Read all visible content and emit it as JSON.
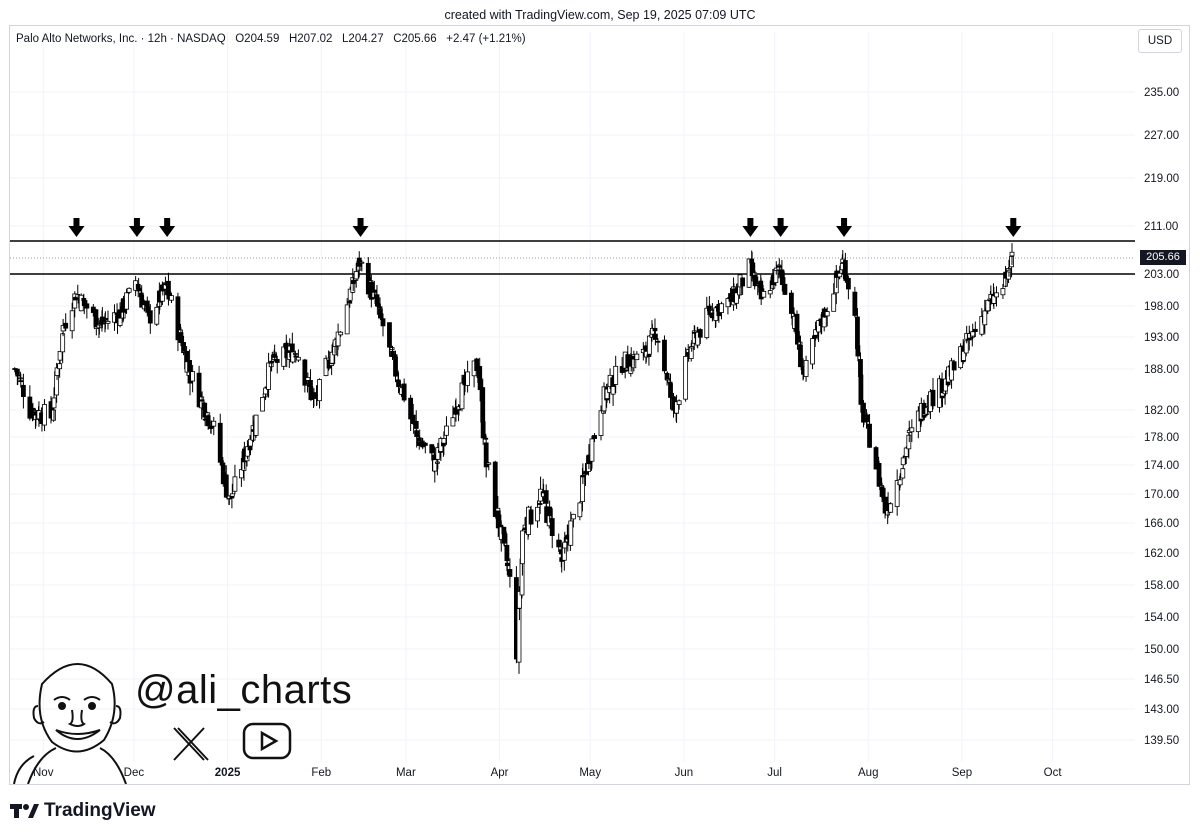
{
  "header": {
    "credit": "created with TradingView.com, Sep 19, 2025 07:09 UTC"
  },
  "legend": {
    "symbol": "Palo Alto Networks, Inc. · 12h · NASDAQ",
    "open": "O204.59",
    "high": "H207.02",
    "low": "L204.27",
    "close": "C205.66",
    "change": "+2.47 (+1.21%)"
  },
  "currency": "USD",
  "last_price": "205.66",
  "watermark": {
    "handle": "@ali_charts"
  },
  "brand": {
    "name": "TradingView"
  },
  "colors": {
    "up": "#ffffff",
    "down": "#000000",
    "wick": "#000000",
    "grid": "#f0f3fa"
  },
  "chart_data": {
    "type": "candlestick",
    "title": "Palo Alto Networks, Inc. · 12h · NASDAQ",
    "y_ticks": [
      235.0,
      227.0,
      219.0,
      211.0,
      203.0,
      198.0,
      193.0,
      188.0,
      182.0,
      178.0,
      174.0,
      170.0,
      166.0,
      162.0,
      158.0,
      154.0,
      150.0,
      146.5,
      143.0,
      139.5
    ],
    "x_ticks": [
      "Nov",
      "Dec",
      "2025",
      "Feb",
      "Mar",
      "Apr",
      "May",
      "Jun",
      "Jul",
      "Aug",
      "Sep",
      "Oct"
    ],
    "resistance_zone": [
      203.0,
      208.5
    ],
    "arrow_marker_dates": [
      "2024-11-12",
      "2024-12-02",
      "2024-12-12",
      "2025-02-14",
      "2025-06-23",
      "2025-07-03",
      "2025-07-24",
      "2025-09-18"
    ],
    "series_keypoints": [
      {
        "date": "2024-10-23",
        "close": 188
      },
      {
        "date": "2024-10-28",
        "close": 182
      },
      {
        "date": "2024-11-04",
        "close": 181
      },
      {
        "date": "2024-11-08",
        "close": 195
      },
      {
        "date": "2024-11-12",
        "close": 200
      },
      {
        "date": "2024-11-20",
        "close": 195
      },
      {
        "date": "2024-11-27",
        "close": 197
      },
      {
        "date": "2024-12-02",
        "close": 202
      },
      {
        "date": "2024-12-06",
        "close": 196
      },
      {
        "date": "2024-12-12",
        "close": 201
      },
      {
        "date": "2024-12-20",
        "close": 187
      },
      {
        "date": "2024-12-27",
        "close": 180
      },
      {
        "date": "2025-01-02",
        "close": 169
      },
      {
        "date": "2025-01-06",
        "close": 174
      },
      {
        "date": "2025-01-10",
        "close": 180
      },
      {
        "date": "2025-01-16",
        "close": 189
      },
      {
        "date": "2025-01-24",
        "close": 191
      },
      {
        "date": "2025-01-30",
        "close": 183
      },
      {
        "date": "2025-02-06",
        "close": 192
      },
      {
        "date": "2025-02-14",
        "close": 205
      },
      {
        "date": "2025-02-19",
        "close": 199
      },
      {
        "date": "2025-02-25",
        "close": 189
      },
      {
        "date": "2025-03-05",
        "close": 178
      },
      {
        "date": "2025-03-11",
        "close": 174
      },
      {
        "date": "2025-03-18",
        "close": 183
      },
      {
        "date": "2025-03-25",
        "close": 189
      },
      {
        "date": "2025-03-28",
        "close": 174
      },
      {
        "date": "2025-04-04",
        "close": 160
      },
      {
        "date": "2025-04-07",
        "close": 150
      },
      {
        "date": "2025-04-09",
        "close": 165
      },
      {
        "date": "2025-04-15",
        "close": 170
      },
      {
        "date": "2025-04-22",
        "close": 161
      },
      {
        "date": "2025-04-28",
        "close": 170
      },
      {
        "date": "2025-05-05",
        "close": 183
      },
      {
        "date": "2025-05-12",
        "close": 189
      },
      {
        "date": "2025-05-19",
        "close": 190
      },
      {
        "date": "2025-05-23",
        "close": 194
      },
      {
        "date": "2025-05-29",
        "close": 182
      },
      {
        "date": "2025-06-04",
        "close": 192
      },
      {
        "date": "2025-06-10",
        "close": 197
      },
      {
        "date": "2025-06-17",
        "close": 199
      },
      {
        "date": "2025-06-23",
        "close": 204
      },
      {
        "date": "2025-06-27",
        "close": 199
      },
      {
        "date": "2025-07-03",
        "close": 204
      },
      {
        "date": "2025-07-08",
        "close": 195
      },
      {
        "date": "2025-07-11",
        "close": 187
      },
      {
        "date": "2025-07-17",
        "close": 196
      },
      {
        "date": "2025-07-24",
        "close": 205
      },
      {
        "date": "2025-07-28",
        "close": 196
      },
      {
        "date": "2025-07-30",
        "close": 182
      },
      {
        "date": "2025-08-04",
        "close": 174
      },
      {
        "date": "2025-08-07",
        "close": 168
      },
      {
        "date": "2025-08-11",
        "close": 172
      },
      {
        "date": "2025-08-15",
        "close": 178
      },
      {
        "date": "2025-08-20",
        "close": 183
      },
      {
        "date": "2025-08-27",
        "close": 186
      },
      {
        "date": "2025-09-03",
        "close": 192
      },
      {
        "date": "2025-09-10",
        "close": 198
      },
      {
        "date": "2025-09-15",
        "close": 201
      },
      {
        "date": "2025-09-18",
        "close": 205.66
      }
    ],
    "grid": true,
    "legend_position": "top-left"
  }
}
